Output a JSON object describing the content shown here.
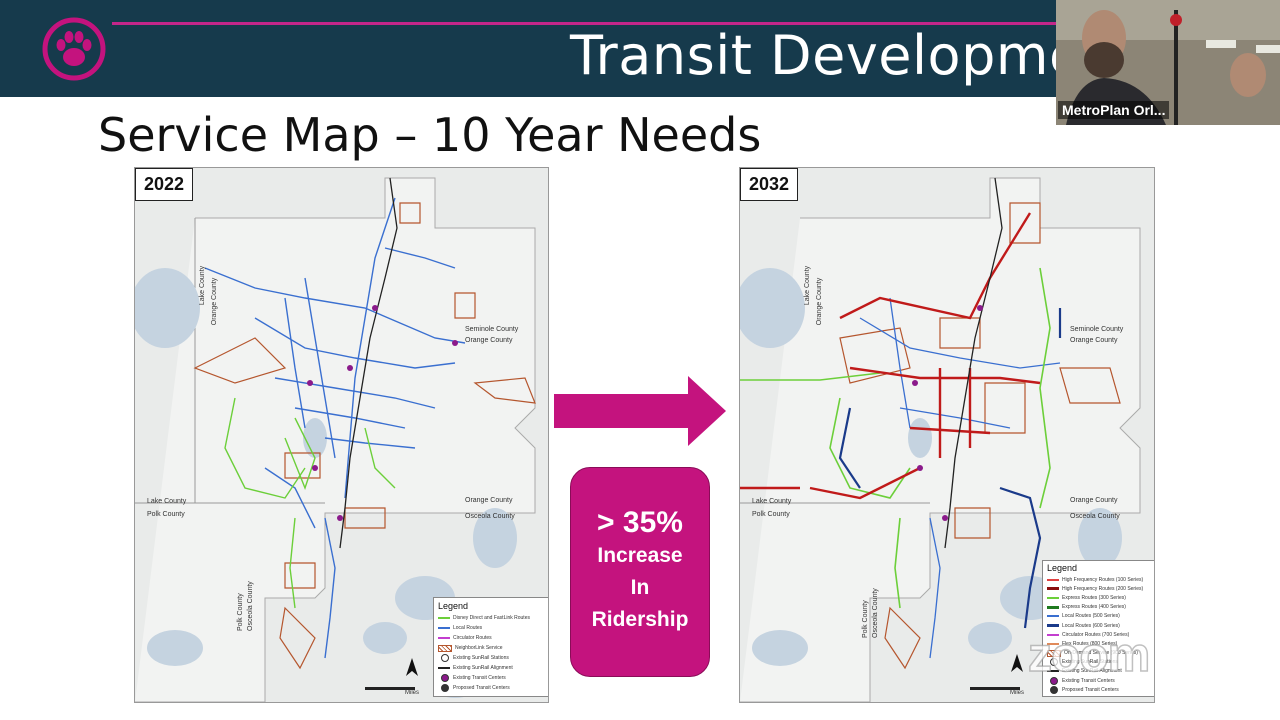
{
  "header": {
    "title": "Transit Developmen"
  },
  "slide": {
    "subtitle": "Service Map – 10 Year Needs"
  },
  "webcam": {
    "label": "MetroPlan Orl..."
  },
  "map_left": {
    "year": "2022",
    "legend_title": "Legend",
    "legend_items": [
      "Disney Direct and FastLink Routes",
      "Local Routes",
      "Circulator Routes",
      "NeighborLink Service",
      "Existing SunRail Stations",
      "Existing SunRail Alignment",
      "Existing Transit Centers",
      "Proposed Transit Centers"
    ],
    "counties": {
      "lake": "Lake County",
      "orange_w": "Orange County",
      "seminole": "Seminole County",
      "orange_n": "Orange County",
      "orange_e": "Orange County",
      "osceola": "Osceola County",
      "lake_s": "Lake County",
      "polk": "Polk County",
      "polk_v": "Polk County",
      "osceola_v": "Osceola County"
    },
    "scale": "Miles"
  },
  "map_right": {
    "year": "2032",
    "legend_title": "Legend",
    "legend_items": [
      "High Frequency Routes (100 Series)",
      "High Frequency Routes (200 Series)",
      "Express Routes (300 Series)",
      "Express Routes (400 Series)",
      "Local Routes (500 Series)",
      "Local Routes (600 Series)",
      "Circulator Routes (700 Series)",
      "Flex Routes (800 Series)",
      "On-Demand Service (900 Series)",
      "Existing SunRail Stations",
      "Existing SunRail Alignment",
      "Existing Transit Centers",
      "Proposed Transit Centers"
    ],
    "counties": {
      "lake": "Lake County",
      "orange_w": "Orange County",
      "seminole": "Seminole County",
      "orange_n": "Orange County",
      "orange_e": "Orange County",
      "osceola": "Osceola County",
      "lake_s": "Lake County",
      "polk": "Polk County",
      "polk_v": "Polk County",
      "osceola_v": "Osceola County"
    },
    "scale": "Miles"
  },
  "callout": {
    "stat": "> 35%",
    "line1": "Increase",
    "line2": "In",
    "line3": "Ridership"
  },
  "colors": {
    "header_bg": "#163a4c",
    "accent_magenta": "#c4137e",
    "local_route": "#3a6fd0",
    "green_route": "#6ccf3a",
    "high_freq": "#c01a1a",
    "neighborlink": "#b5562e"
  },
  "watermark": "zoom"
}
